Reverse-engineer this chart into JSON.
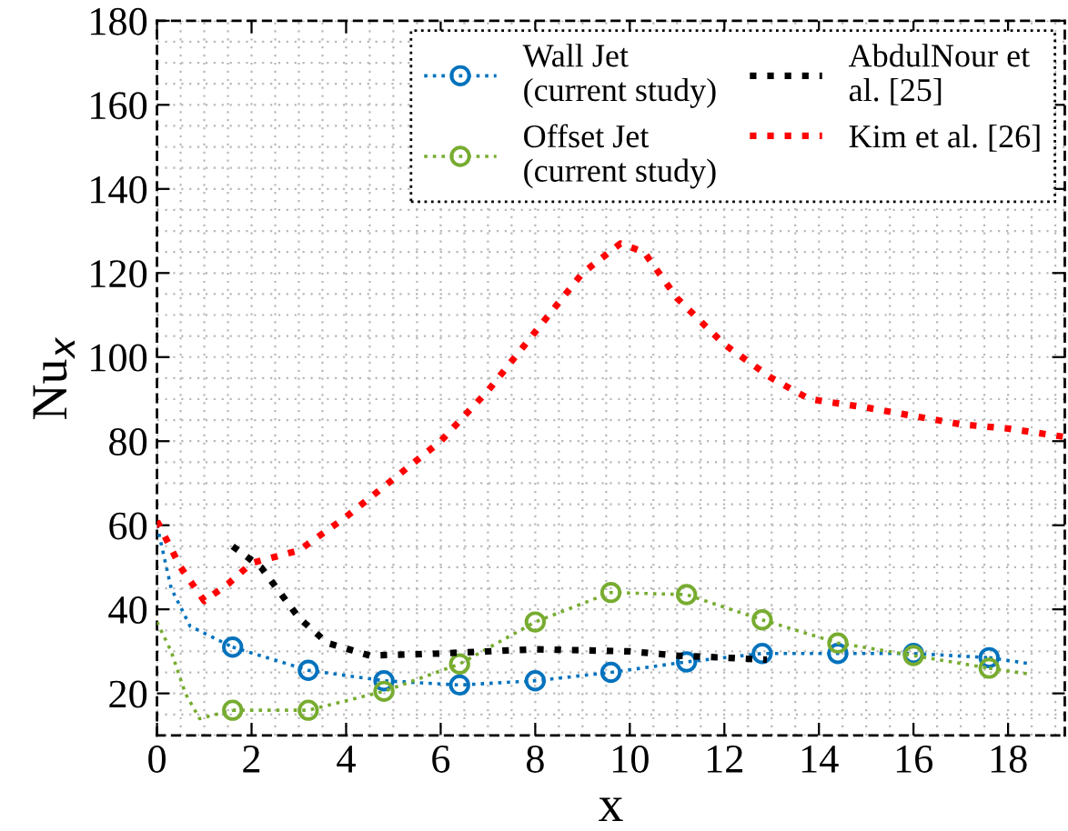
{
  "chart_data": {
    "type": "line",
    "xlabel": "x",
    "ylabel": "Nu$_{x}$",
    "xlim": [
      0,
      19.2
    ],
    "xticks": [
      0,
      2,
      4,
      6,
      8,
      10,
      12,
      14,
      16,
      18
    ],
    "ylim": [
      10,
      180
    ],
    "yticks": [
      20,
      40,
      60,
      80,
      100,
      120,
      140,
      160,
      180
    ],
    "grid": true,
    "legend": "top right",
    "line_style": "dotted",
    "series": [
      {
        "name": "Wall Jet\n(current study)",
        "color": "#0072bd",
        "marker": "circle",
        "x": [
          1.6,
          3.2,
          4.8,
          6.4,
          8.0,
          9.6,
          11.2,
          12.8,
          14.4,
          16.0,
          17.6
        ],
        "values": [
          31,
          25.5,
          23,
          22,
          23,
          25,
          27.5,
          29.5,
          29.5,
          29.5,
          28.5
        ]
      },
      {
        "color": "#0072bd",
        "marker": "none",
        "x": [
          0,
          0.3,
          0.7,
          1.6
        ],
        "values": [
          60,
          45,
          36,
          31
        ]
      },
      {
        "color": "#0072bd",
        "marker": "none",
        "x": [
          17.6,
          18.5
        ],
        "values": [
          28.5,
          27
        ]
      },
      {
        "name": "Offset Jet\n(current study)",
        "color": "#77ac30",
        "marker": "circle",
        "x": [
          1.6,
          3.2,
          4.8,
          6.4,
          8.0,
          9.6,
          11.2,
          12.8,
          14.4,
          16.0,
          17.6
        ],
        "values": [
          16,
          16,
          20.5,
          27,
          37,
          44,
          43.5,
          37.5,
          32,
          29,
          26
        ]
      },
      {
        "color": "#77ac30",
        "marker": "none",
        "x": [
          0,
          0.3,
          0.6,
          0.9,
          1.6
        ],
        "values": [
          37,
          30,
          20,
          14,
          16
        ]
      },
      {
        "color": "#77ac30",
        "marker": "none",
        "x": [
          17.6,
          18.5
        ],
        "values": [
          26,
          24.5
        ]
      },
      {
        "name": "AbdulNour et\nal. [25]",
        "color": "#000000",
        "marker": "none",
        "x": [
          1.6,
          2.2,
          3.0,
          3.6,
          4.5,
          6.0,
          8.0,
          10.0,
          11.0,
          12.0,
          12.9
        ],
        "values": [
          55,
          50,
          38,
          32,
          29,
          29.5,
          30.5,
          30,
          29,
          28.5,
          28
        ]
      },
      {
        "name": "Kim et al. [26]",
        "color": "#ff0000",
        "marker": "none",
        "x": [
          0,
          0.5,
          1.0,
          1.5,
          2.0,
          3.0,
          4.0,
          5.0,
          6.0,
          7.0,
          8.0,
          9.0,
          9.8,
          10.3,
          11.0,
          12.0,
          13.0,
          13.8,
          15.0,
          16.0,
          17.0,
          18.0,
          19.2
        ],
        "values": [
          61,
          50,
          42,
          46,
          51,
          54,
          62,
          71,
          80,
          92,
          106,
          120,
          127,
          125,
          114,
          103,
          95,
          90,
          88,
          86,
          84,
          83,
          81
        ]
      }
    ]
  }
}
